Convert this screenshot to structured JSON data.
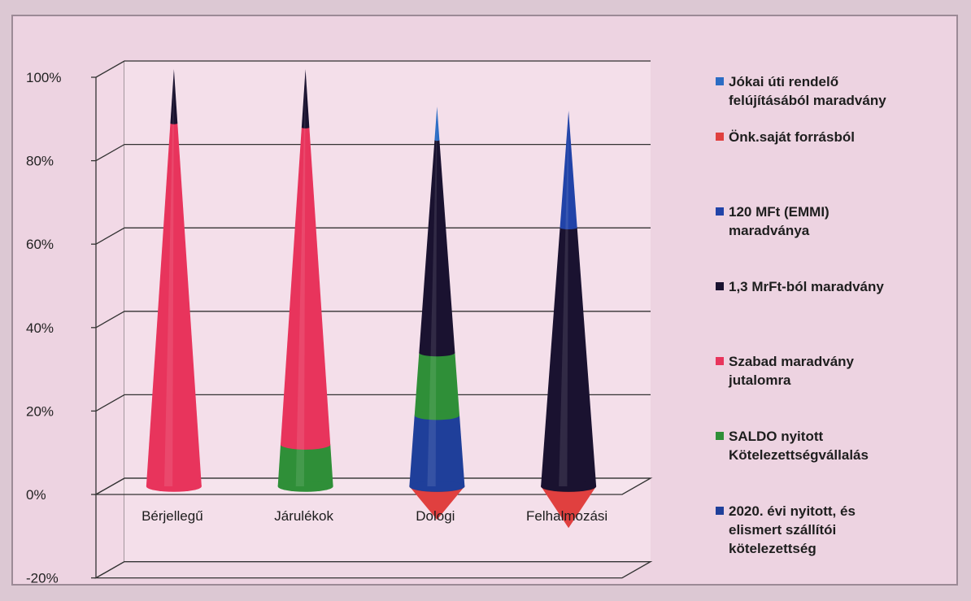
{
  "chart_data": {
    "type": "3d-cone-stacked-percent",
    "categories": [
      "Bérjellegű",
      "Járulékok",
      "Dologi",
      "Felhalmozási"
    ],
    "ylim": [
      -20,
      100
    ],
    "yticks": [
      "-20%",
      "0%",
      "20%",
      "40%",
      "60%",
      "80%",
      "100%"
    ],
    "yticks_values": [
      -20,
      0,
      20,
      40,
      60,
      80,
      100
    ],
    "grid": true,
    "legend_position": "right",
    "series": [
      {
        "name": "2020. évi nyitott, és elismert szállítói kötelezettség",
        "color": "#1f3f9a",
        "values": [
          0,
          0,
          17,
          0
        ]
      },
      {
        "name": "SALDO nyitott Kötelezettségvállalás",
        "color": "#2f8f38",
        "values": [
          0,
          10,
          15,
          0
        ]
      },
      {
        "name": "Szabad maradvány jutalomra",
        "color": "#e8345c",
        "values": [
          87,
          76,
          0,
          0
        ]
      },
      {
        "name": "1,3 MrFt-ból maradvány",
        "color": "#1a1230",
        "values": [
          13,
          14,
          51,
          62
        ]
      },
      {
        "name": "120 MFt (EMMI) maradványa",
        "color": "#2143a8",
        "values": [
          0,
          0,
          0,
          28
        ]
      },
      {
        "name": "Önk.saját forrásból",
        "color": "#e0403f",
        "values": [
          0,
          0,
          -8,
          -10
        ]
      },
      {
        "name": "Jókai úti rendelő felújításából maradvány",
        "color": "#2b6cc4",
        "values": [
          0,
          0,
          8,
          0
        ]
      }
    ]
  },
  "legend": [
    {
      "label": "Jókai úti rendelő felújításából maradvány",
      "color": "#2b6cc4",
      "lines": [
        "Jókai úti rendelő",
        "felújításából maradvány"
      ]
    },
    {
      "label": "Önk.saját forrásból",
      "color": "#e0403f",
      "lines": [
        "Önk.saját forrásból"
      ]
    },
    {
      "label": "120 MFt (EMMI) maradványa",
      "color": "#2143a8",
      "lines": [
        "120 MFt (EMMI)",
        "maradványa"
      ]
    },
    {
      "label": "1,3 MrFt-ból maradvány",
      "color": "#1a1230",
      "lines": [
        "1,3 MrFt-ból maradvány"
      ]
    },
    {
      "label": "Szabad maradvány jutalomra",
      "color": "#e8345c",
      "lines": [
        "Szabad maradvány",
        "jutalomra"
      ]
    },
    {
      "label": "SALDO nyitott Kötelezettségvállalás",
      "color": "#2f8f38",
      "lines": [
        "SALDO nyitott",
        "Kötelezettségvállalás"
      ]
    },
    {
      "label": "2020. évi nyitott, és elismert szállítói kötelezettség",
      "color": "#1f3f9a",
      "lines": [
        "2020. évi nyitott, és",
        "elismert szállítói",
        "kötelezettség"
      ]
    }
  ]
}
